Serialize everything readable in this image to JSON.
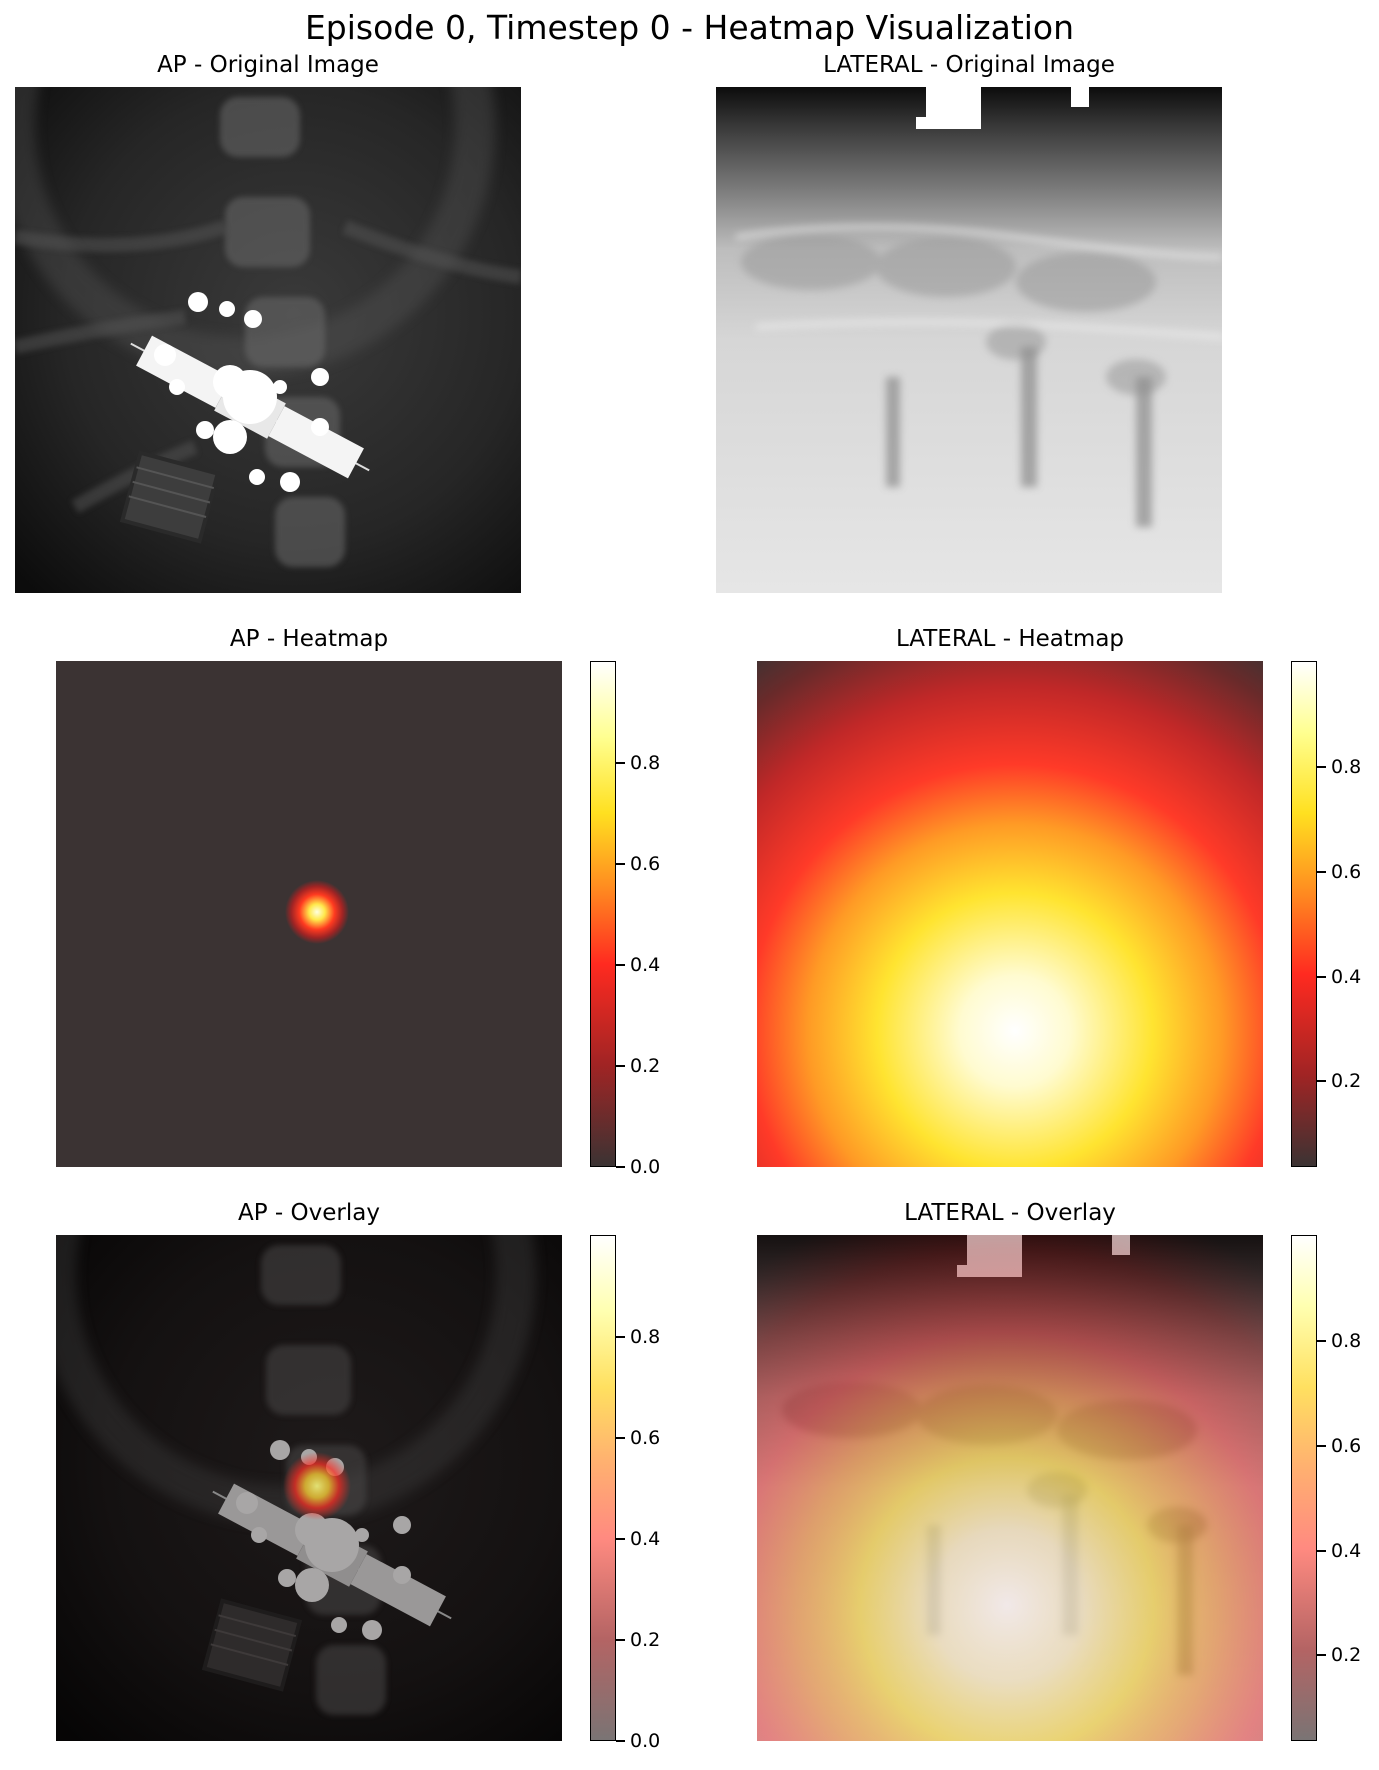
{
  "figure": {
    "suptitle": "Episode 0, Timestep 0 - Heatmap Visualization"
  },
  "panels": {
    "ap_original": {
      "title": "AP - Original Image"
    },
    "lateral_original": {
      "title": "LATERAL - Original Image"
    },
    "ap_heatmap": {
      "title": "AP - Heatmap"
    },
    "lateral_heatmap": {
      "title": "LATERAL - Heatmap"
    },
    "ap_overlay": {
      "title": "AP - Overlay"
    },
    "lateral_overlay": {
      "title": "LATERAL - Overlay"
    }
  },
  "colorbars": {
    "ap_heatmap": {
      "ticks": [
        "0.0",
        "0.2",
        "0.4",
        "0.6",
        "0.8"
      ]
    },
    "lateral_heatmap": {
      "ticks": [
        "0.2",
        "0.4",
        "0.6",
        "0.8"
      ]
    },
    "ap_overlay": {
      "ticks": [
        "0.0",
        "0.2",
        "0.4",
        "0.6",
        "0.8"
      ]
    },
    "lateral_overlay": {
      "ticks": [
        "0.2",
        "0.4",
        "0.6",
        "0.8"
      ]
    }
  },
  "colors": {
    "heat_low": "#3b3333",
    "heat_mid": "#ff3030",
    "heat_high": "#ffffff",
    "colormap": "hot"
  }
}
